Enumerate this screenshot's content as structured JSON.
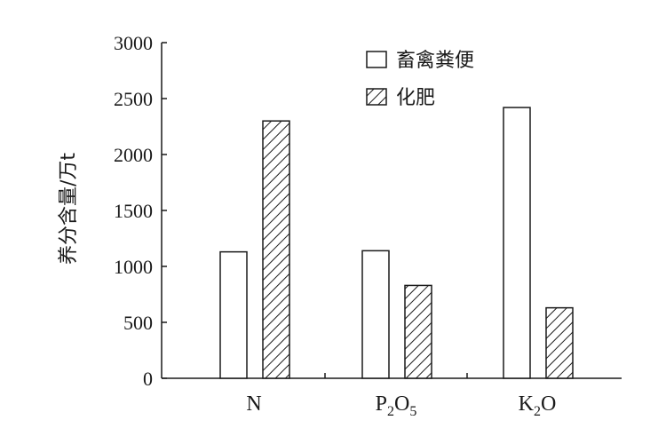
{
  "chart_data": {
    "type": "bar",
    "ylabel": "养分含量/万t",
    "ylim": [
      0,
      3000
    ],
    "yticks": [
      "0",
      "500",
      "1000",
      "1500",
      "2000",
      "2500",
      "3000"
    ],
    "categories": [
      {
        "main": "N",
        "sub": "",
        "tail": ""
      },
      {
        "main": "P",
        "sub": "2",
        "tail": "O",
        "sub2": "5"
      },
      {
        "main": "K",
        "sub": "2",
        "tail": "O",
        "sub2": ""
      }
    ],
    "series": [
      {
        "name": "畜禽粪便",
        "pattern": "open",
        "values": [
          1130,
          1140,
          2420
        ]
      },
      {
        "name": "化肥",
        "pattern": "hatched",
        "values": [
          2300,
          830,
          630
        ]
      }
    ],
    "legend_position": "top-right",
    "grid": false,
    "colors": {
      "stroke": "#1a1a1a",
      "fill": "#ffffff"
    }
  }
}
